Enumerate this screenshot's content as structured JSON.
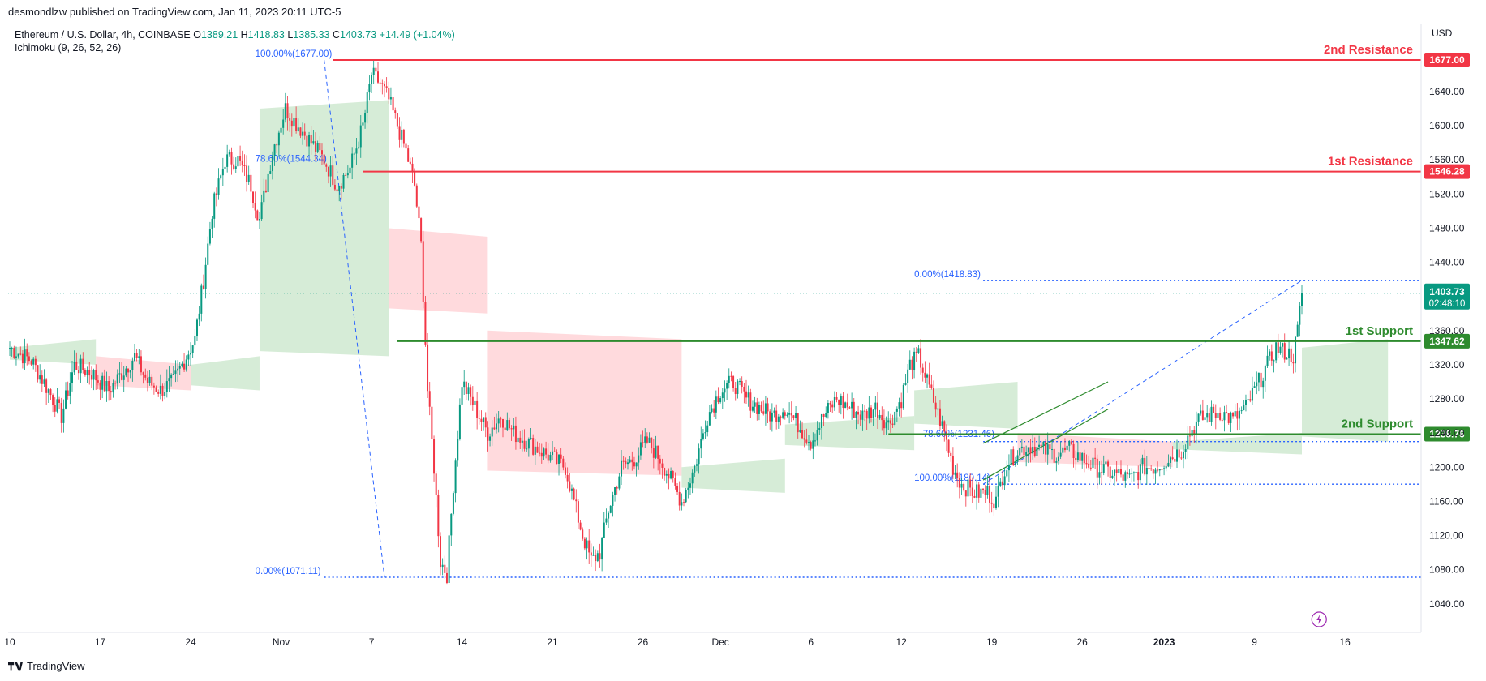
{
  "header": {
    "published": "desmondlzw published on TradingView.com, Jan 11, 2023 20:11 UTC-5",
    "symbol": "Ethereum / U.S. Dollar, 4h, COINBASE",
    "o_label": "O",
    "o_value": "1389.21",
    "h_label": "H",
    "h_value": "1418.83",
    "l_label": "L",
    "l_value": "1385.33",
    "c_label": "C",
    "c_value": "1403.73",
    "change": "+14.49 (+1.04%)",
    "indicator": "Ichimoku (9, 26, 52, 26)",
    "currency": "USD"
  },
  "footer": {
    "brand": "TradingView"
  },
  "colors": {
    "up": "#089981",
    "down": "#f23645",
    "resistance": "#f23645",
    "support": "#2e8b2e",
    "fib": "#2962ff",
    "cloud_green": "#c8e6c9",
    "cloud_red": "#ffcdd2"
  },
  "chart_data": {
    "type": "candlestick",
    "timeframe": "4h",
    "ylim": [
      1010,
      1710
    ],
    "y_ticks": [
      "1040.00",
      "1080.00",
      "1120.00",
      "1160.00",
      "1200.00",
      "1240.00",
      "1280.00",
      "1320.00",
      "1360.00",
      "1400.00",
      "1440.00",
      "1480.00",
      "1520.00",
      "1560.00",
      "1600.00",
      "1640.00"
    ],
    "x_ticks": [
      "10",
      "17",
      "24",
      "Nov",
      "7",
      "14",
      "21",
      "26",
      "Dec",
      "6",
      "12",
      "19",
      "26",
      "2023",
      "9",
      "16"
    ],
    "x_tick_index": [
      0,
      42,
      84,
      126,
      168,
      210,
      252,
      294,
      330,
      372,
      414,
      456,
      498,
      536,
      578,
      620
    ],
    "key_prices": {
      "close": 1403.73,
      "countdown": "02:48:10"
    },
    "levels": [
      {
        "name": "2nd Resistance",
        "price": 1677.0,
        "label": "1677.00",
        "kind": "resistance"
      },
      {
        "name": "1st Resistance",
        "price": 1546.28,
        "label": "1546.28",
        "kind": "resistance"
      },
      {
        "name": "1st Support",
        "price": 1347.62,
        "label": "1347.62",
        "kind": "support"
      },
      {
        "name": "2nd Support",
        "price": 1238.76,
        "label": "1238.76",
        "kind": "support"
      }
    ],
    "fib_labels": [
      {
        "text": "100.00%(1677.00)",
        "price": 1677.0
      },
      {
        "text": "78.60%(1544.34)",
        "price": 1554.0
      },
      {
        "text": "0.00%(1071.11)",
        "price": 1071.11
      },
      {
        "text": "0.00%(1418.83)",
        "price": 1418.83
      },
      {
        "text": "78.60%(1231.46)",
        "price": 1231.46
      },
      {
        "text": "100.00%(1180.14)",
        "price": 1180.14
      }
    ],
    "path": [
      [
        0,
        1340
      ],
      [
        10,
        1325
      ],
      [
        18,
        1290
      ],
      [
        24,
        1260
      ],
      [
        30,
        1320
      ],
      [
        38,
        1310
      ],
      [
        46,
        1290
      ],
      [
        52,
        1310
      ],
      [
        58,
        1330
      ],
      [
        64,
        1300
      ],
      [
        70,
        1290
      ],
      [
        76,
        1300
      ],
      [
        82,
        1330
      ],
      [
        86,
        1350
      ],
      [
        90,
        1420
      ],
      [
        94,
        1500
      ],
      [
        100,
        1560
      ],
      [
        106,
        1560
      ],
      [
        112,
        1530
      ],
      [
        116,
        1490
      ],
      [
        122,
        1570
      ],
      [
        128,
        1620
      ],
      [
        134,
        1600
      ],
      [
        140,
        1580
      ],
      [
        146,
        1560
      ],
      [
        152,
        1530
      ],
      [
        158,
        1550
      ],
      [
        164,
        1600
      ],
      [
        168,
        1660
      ],
      [
        172,
        1650
      ],
      [
        176,
        1630
      ],
      [
        180,
        1600
      ],
      [
        184,
        1570
      ],
      [
        188,
        1530
      ],
      [
        191,
        1460
      ],
      [
        194,
        1290
      ],
      [
        197,
        1200
      ],
      [
        200,
        1090
      ],
      [
        203,
        1075
      ],
      [
        206,
        1180
      ],
      [
        210,
        1300
      ],
      [
        216,
        1270
      ],
      [
        222,
        1240
      ],
      [
        228,
        1260
      ],
      [
        234,
        1240
      ],
      [
        240,
        1230
      ],
      [
        246,
        1220
      ],
      [
        252,
        1210
      ],
      [
        258,
        1200
      ],
      [
        262,
        1160
      ],
      [
        266,
        1120
      ],
      [
        270,
        1090
      ],
      [
        274,
        1100
      ],
      [
        278,
        1150
      ],
      [
        284,
        1200
      ],
      [
        290,
        1210
      ],
      [
        296,
        1230
      ],
      [
        302,
        1210
      ],
      [
        308,
        1180
      ],
      [
        312,
        1160
      ],
      [
        318,
        1200
      ],
      [
        324,
        1260
      ],
      [
        330,
        1290
      ],
      [
        336,
        1300
      ],
      [
        342,
        1280
      ],
      [
        348,
        1270
      ],
      [
        354,
        1260
      ],
      [
        360,
        1270
      ],
      [
        366,
        1250
      ],
      [
        372,
        1230
      ],
      [
        378,
        1260
      ],
      [
        384,
        1280
      ],
      [
        390,
        1270
      ],
      [
        396,
        1260
      ],
      [
        402,
        1270
      ],
      [
        408,
        1250
      ],
      [
        414,
        1280
      ],
      [
        418,
        1320
      ],
      [
        422,
        1330
      ],
      [
        426,
        1300
      ],
      [
        430,
        1270
      ],
      [
        434,
        1240
      ],
      [
        438,
        1200
      ],
      [
        442,
        1180
      ],
      [
        448,
        1170
      ],
      [
        454,
        1170
      ],
      [
        458,
        1160
      ],
      [
        462,
        1200
      ],
      [
        468,
        1220
      ],
      [
        474,
        1225
      ],
      [
        480,
        1220
      ],
      [
        486,
        1215
      ],
      [
        492,
        1220
      ],
      [
        498,
        1210
      ],
      [
        504,
        1200
      ],
      [
        510,
        1195
      ],
      [
        516,
        1190
      ],
      [
        520,
        1185
      ],
      [
        526,
        1200
      ],
      [
        532,
        1200
      ],
      [
        538,
        1210
      ],
      [
        544,
        1220
      ],
      [
        548,
        1240
      ],
      [
        552,
        1255
      ],
      [
        556,
        1260
      ],
      [
        562,
        1265
      ],
      [
        568,
        1255
      ],
      [
        574,
        1270
      ],
      [
        580,
        1300
      ],
      [
        584,
        1320
      ],
      [
        588,
        1340
      ],
      [
        592,
        1335
      ],
      [
        596,
        1330
      ],
      [
        598,
        1360
      ],
      [
        600,
        1405
      ]
    ]
  }
}
